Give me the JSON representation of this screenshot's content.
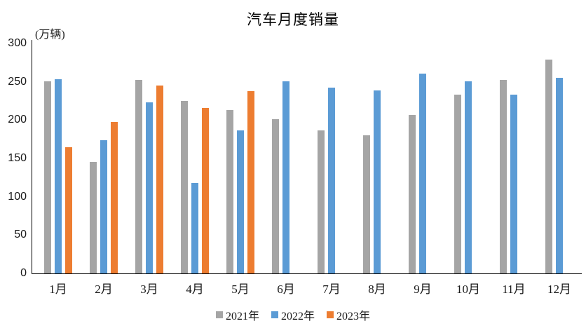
{
  "chart_data": {
    "type": "bar",
    "title": "汽车月度销量",
    "ylabel": "(万辆)",
    "categories": [
      "1月",
      "2月",
      "3月",
      "4月",
      "5月",
      "6月",
      "7月",
      "8月",
      "9月",
      "10月",
      "11月",
      "12月"
    ],
    "series": [
      {
        "name": "2021年",
        "color": "#A5A5A5",
        "values": [
          250.3,
          145.5,
          252.6,
          225.2,
          212.8,
          201.5,
          186.4,
          179.9,
          206.7,
          233.3,
          252.2,
          278.6
        ]
      },
      {
        "name": "2022年",
        "color": "#5B9BD5",
        "values": [
          253.1,
          173.7,
          223.4,
          118.1,
          186.2,
          250.2,
          242.0,
          238.3,
          261.0,
          250.5,
          232.8,
          255.6
        ]
      },
      {
        "name": "2023年",
        "color": "#ED7D31",
        "values": [
          164.9,
          197.6,
          245.1,
          215.9,
          238.2,
          null,
          null,
          null,
          null,
          null,
          null,
          null
        ]
      }
    ],
    "ylim": [
      0,
      300
    ],
    "yticks": [
      300,
      250,
      200,
      150,
      100,
      50,
      0
    ],
    "grid": false,
    "legend_position": "bottom",
    "axis_color": "#000000",
    "text_color": "#1a1a1a"
  }
}
